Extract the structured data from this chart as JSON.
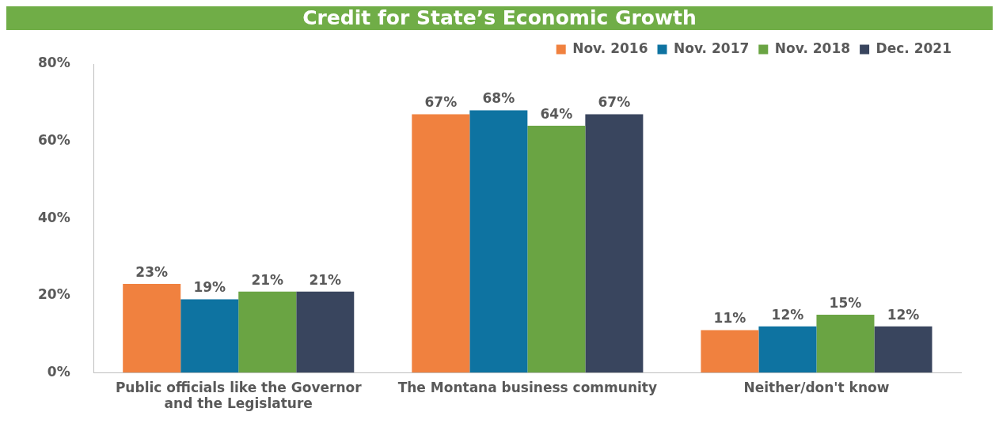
{
  "chart_data": {
    "type": "bar",
    "title": "Credit for State’s Economic Growth",
    "categories": [
      "Public officials like the Governor and the Legislature",
      "The Montana business community",
      "Neither/don't know"
    ],
    "series": [
      {
        "name": "Nov. 2016",
        "color": "#f0813f",
        "values": [
          23,
          67,
          11
        ],
        "value_labels": [
          "23%",
          "67%",
          "11%"
        ]
      },
      {
        "name": "Nov. 2017",
        "color": "#0e73a1",
        "values": [
          19,
          68,
          12
        ],
        "value_labels": [
          "19%",
          "68%",
          "12%"
        ]
      },
      {
        "name": "Nov. 2018",
        "color": "#6aa443",
        "values": [
          21,
          64,
          15
        ],
        "value_labels": [
          "21%",
          "64%",
          "15%"
        ]
      },
      {
        "name": "Dec. 2021",
        "color": "#39455e",
        "values": [
          21,
          67,
          12
        ],
        "value_labels": [
          "21%",
          "67%",
          "12%"
        ]
      }
    ],
    "ylim": [
      0,
      80
    ],
    "yticks": [
      {
        "value": 0,
        "label": "0%"
      },
      {
        "value": 20,
        "label": "20%"
      },
      {
        "value": 40,
        "label": "40%"
      },
      {
        "value": 60,
        "label": "60%"
      },
      {
        "value": 80,
        "label": "80%"
      }
    ],
    "grid": false,
    "legend": "top right"
  }
}
